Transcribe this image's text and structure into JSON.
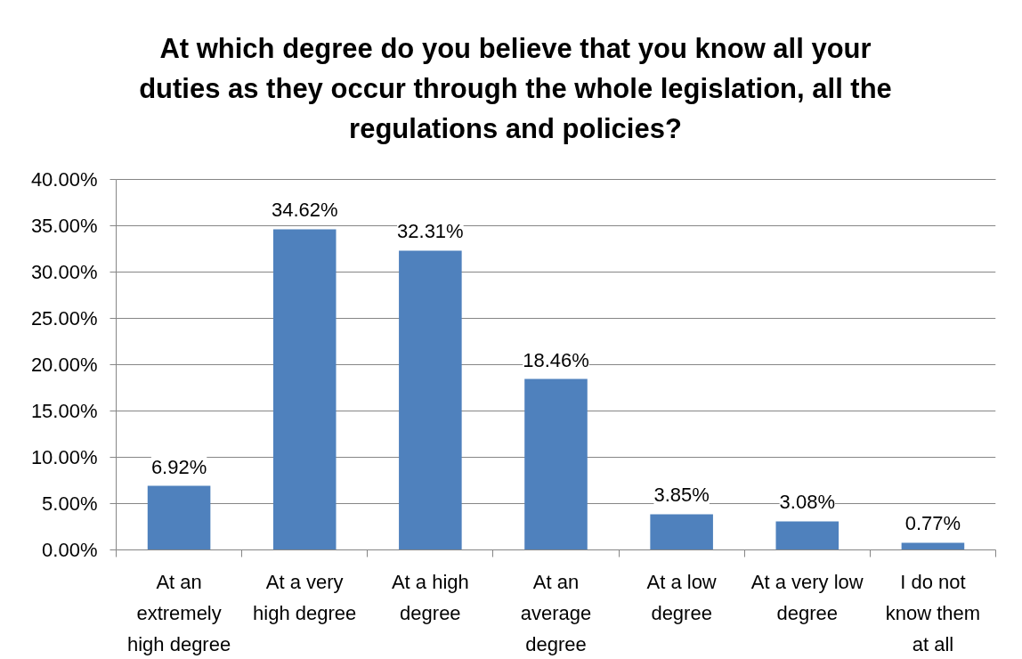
{
  "chart_data": {
    "type": "bar",
    "title": "At which degree do you believe that you know all your duties as they occur through the whole legislation, all the regulations and policies?",
    "categories": [
      "At an extremely high degree",
      "At a very high degree",
      "At a high degree",
      "At an average degree",
      "At a low degree",
      "At a very low degree",
      "I do not know them at all"
    ],
    "values": [
      6.92,
      34.62,
      32.31,
      18.46,
      3.85,
      3.08,
      0.77
    ],
    "value_labels": [
      "6.92%",
      "34.62%",
      "32.31%",
      "18.46%",
      "3.85%",
      "3.08%",
      "0.77%"
    ],
    "color": "#4f81bd",
    "ylim": [
      0,
      40
    ],
    "yticks": [
      {
        "value": 0,
        "label": "0.00%"
      },
      {
        "value": 5,
        "label": "5.00%"
      },
      {
        "value": 10,
        "label": "10.00%"
      },
      {
        "value": 15,
        "label": "15.00%"
      },
      {
        "value": 20,
        "label": "20.00%"
      },
      {
        "value": 25,
        "label": "25.00%"
      },
      {
        "value": 30,
        "label": "30.00%"
      },
      {
        "value": 35,
        "label": "35.00%"
      },
      {
        "value": 40,
        "label": "40.00%"
      }
    ],
    "grid": "y"
  }
}
